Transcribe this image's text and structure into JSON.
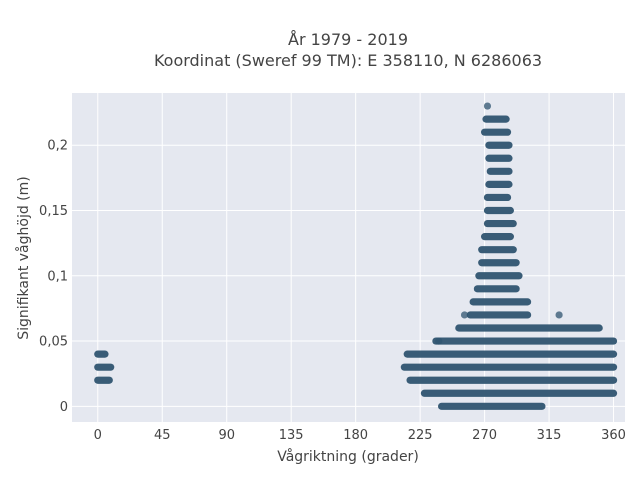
{
  "chart_data": {
    "type": "scatter",
    "title": [
      "År 1979 - 2019",
      "Koordinat (Sweref 99 TM): E 358110, N 6286063"
    ],
    "xlabel": "Vågriktning (grader)",
    "ylabel": "Signifikant våghöjd (m)",
    "xlim": [
      -18,
      368
    ],
    "ylim": [
      -0.012,
      0.24
    ],
    "xticks": [
      0,
      45,
      90,
      135,
      180,
      225,
      270,
      315,
      360
    ],
    "xtick_labels": [
      "0",
      "45",
      "90",
      "135",
      "180",
      "225",
      "270",
      "315",
      "360"
    ],
    "yticks": [
      0,
      0.05,
      0.1,
      0.15,
      0.2
    ],
    "ytick_labels": [
      "0",
      "0,05",
      "0,1",
      "0,15",
      "0,2"
    ],
    "grid": true,
    "marker_color": "#2f5470",
    "plot_background": "#e5e8f0",
    "rows": [
      {
        "y": 0.0,
        "x_ranges": [
          [
            240,
            310
          ]
        ],
        "outliers": []
      },
      {
        "y": 0.01,
        "x_ranges": [
          [
            228,
            360
          ]
        ],
        "outliers": []
      },
      {
        "y": 0.02,
        "x_ranges": [
          [
            0,
            8
          ],
          [
            218,
            360
          ]
        ],
        "outliers": []
      },
      {
        "y": 0.03,
        "x_ranges": [
          [
            0,
            9
          ],
          [
            214,
            360
          ]
        ],
        "outliers": []
      },
      {
        "y": 0.04,
        "x_ranges": [
          [
            0,
            5
          ],
          [
            216,
            360
          ]
        ],
        "outliers": []
      },
      {
        "y": 0.05,
        "x_ranges": [
          [
            236,
            360
          ]
        ],
        "outliers": [
          [
            238,
            0.05
          ]
        ]
      },
      {
        "y": 0.06,
        "x_ranges": [
          [
            252,
            350
          ]
        ],
        "outliers": []
      },
      {
        "y": 0.07,
        "x_ranges": [
          [
            260,
            300
          ]
        ],
        "outliers": [
          [
            256,
            0.07
          ],
          [
            322,
            0.07
          ]
        ]
      },
      {
        "y": 0.08,
        "x_ranges": [
          [
            262,
            300
          ]
        ],
        "outliers": []
      },
      {
        "y": 0.09,
        "x_ranges": [
          [
            265,
            292
          ]
        ],
        "outliers": []
      },
      {
        "y": 0.1,
        "x_ranges": [
          [
            266,
            294
          ]
        ],
        "outliers": []
      },
      {
        "y": 0.11,
        "x_ranges": [
          [
            268,
            292
          ]
        ],
        "outliers": []
      },
      {
        "y": 0.12,
        "x_ranges": [
          [
            268,
            290
          ]
        ],
        "outliers": []
      },
      {
        "y": 0.13,
        "x_ranges": [
          [
            270,
            288
          ]
        ],
        "outliers": []
      },
      {
        "y": 0.14,
        "x_ranges": [
          [
            272,
            290
          ]
        ],
        "outliers": []
      },
      {
        "y": 0.15,
        "x_ranges": [
          [
            272,
            288
          ]
        ],
        "outliers": []
      },
      {
        "y": 0.16,
        "x_ranges": [
          [
            272,
            286
          ]
        ],
        "outliers": []
      },
      {
        "y": 0.17,
        "x_ranges": [
          [
            273,
            287
          ]
        ],
        "outliers": []
      },
      {
        "y": 0.18,
        "x_ranges": [
          [
            274,
            287
          ]
        ],
        "outliers": []
      },
      {
        "y": 0.19,
        "x_ranges": [
          [
            273,
            287
          ]
        ],
        "outliers": []
      },
      {
        "y": 0.2,
        "x_ranges": [
          [
            273,
            287
          ]
        ],
        "outliers": []
      },
      {
        "y": 0.21,
        "x_ranges": [
          [
            270,
            286
          ]
        ],
        "outliers": []
      },
      {
        "y": 0.22,
        "x_ranges": [
          [
            271,
            285
          ]
        ],
        "outliers": []
      }
    ],
    "extra_points": [
      [
        272,
        0.23
      ]
    ]
  }
}
